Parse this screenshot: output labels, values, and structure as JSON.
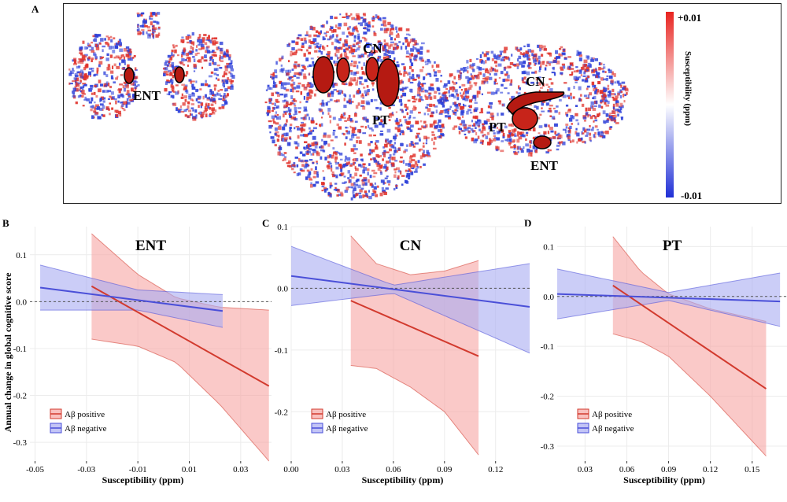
{
  "figure": {
    "panel_labels": {
      "A": "A",
      "B": "B",
      "C": "C",
      "D": "D"
    },
    "panelA": {
      "description": "Susceptibility brain maps (coronal, axial, sagittal)",
      "region_labels": {
        "coronal_ent": "ENT",
        "axial_cn": "CN",
        "axial_pt": "PT",
        "sagittal_cn": "CN",
        "sagittal_pt": "PT",
        "sagittal_ent": "ENT"
      },
      "colorbar": {
        "label": "Susceptibility (ppm)",
        "max_label": "+0.01",
        "min_label": "-0.01",
        "colors": {
          "max": "#e8231f",
          "mid": "#ffffff",
          "min": "#1f2fd6"
        }
      }
    },
    "shared_ylabel": "Annual change in global cognitive score",
    "colors": {
      "positive_line": "#d23a2e",
      "positive_fill": "#f6a5a3",
      "negative_line": "#4a4fd8",
      "negative_fill": "#a9acf2",
      "zero_line": "#555555"
    }
  },
  "chart_data": [
    {
      "panel": "B",
      "type": "line",
      "title": "ENT",
      "xlabel": "Susceptibility (ppm)",
      "ylabel": "Annual change in global cognitive score",
      "xlim": [
        -0.052,
        0.042
      ],
      "ylim": [
        -0.34,
        0.16
      ],
      "xticks": [
        -0.05,
        -0.03,
        -0.01,
        0.01,
        0.03
      ],
      "xtick_labels": [
        "-0.05",
        "-0.03",
        "-0.01",
        "0.01",
        "0.03"
      ],
      "yticks": [
        0.1,
        0.0,
        -0.1,
        -0.2,
        -0.3
      ],
      "ytick_labels": [
        "0.1",
        "0.0",
        "-0.1",
        "-0.2",
        "-0.3"
      ],
      "grid": true,
      "legend_position": "bottom-left",
      "series": [
        {
          "name": "Aβ positive",
          "x": [
            -0.028,
            0.041
          ],
          "y": [
            0.033,
            -0.18
          ],
          "ci_upper": {
            "x": [
              -0.028,
              -0.01,
              0.005,
              0.022,
              0.041
            ],
            "y": [
              0.145,
              0.058,
              0.008,
              -0.012,
              -0.018
            ]
          },
          "ci_lower": {
            "x": [
              -0.028,
              -0.01,
              0.005,
              0.022,
              0.041
            ],
            "y": [
              -0.08,
              -0.095,
              -0.13,
              -0.22,
              -0.34
            ]
          }
        },
        {
          "name": "Aβ negative",
          "x": [
            -0.048,
            0.023
          ],
          "y": [
            0.03,
            -0.02
          ],
          "ci_upper": {
            "x": [
              -0.048,
              -0.01,
              0.023
            ],
            "y": [
              0.078,
              0.025,
              0.015
            ]
          },
          "ci_lower": {
            "x": [
              -0.048,
              -0.01,
              0.023
            ],
            "y": [
              -0.018,
              -0.018,
              -0.055
            ]
          }
        }
      ]
    },
    {
      "panel": "C",
      "type": "line",
      "title": "CN",
      "xlabel": "Susceptibility (ppm)",
      "xlim": [
        0.0,
        0.14
      ],
      "ylim": [
        -0.28,
        0.1
      ],
      "xticks": [
        0.0,
        0.03,
        0.06,
        0.09,
        0.12
      ],
      "xtick_labels": [
        "0.00",
        "0.03",
        "0.06",
        "0.09",
        "0.12"
      ],
      "yticks": [
        0.1,
        0.0,
        -0.1,
        -0.2
      ],
      "ytick_labels": [
        "0.1",
        "0.0",
        "-0.1",
        "-0.2"
      ],
      "grid": true,
      "legend_position": "bottom-left",
      "series": [
        {
          "name": "Aβ positive",
          "x": [
            0.035,
            0.11
          ],
          "y": [
            -0.02,
            -0.11
          ],
          "ci_upper": {
            "x": [
              0.035,
              0.05,
              0.07,
              0.09,
              0.11
            ],
            "y": [
              0.085,
              0.04,
              0.022,
              0.028,
              0.045
            ]
          },
          "ci_lower": {
            "x": [
              0.035,
              0.05,
              0.07,
              0.09,
              0.11
            ],
            "y": [
              -0.125,
              -0.13,
              -0.16,
              -0.2,
              -0.27
            ]
          }
        },
        {
          "name": "Aβ negative",
          "x": [
            0.0,
            0.14
          ],
          "y": [
            0.02,
            -0.03
          ],
          "ci_upper": {
            "x": [
              0.0,
              0.06,
              0.14
            ],
            "y": [
              0.068,
              0.005,
              0.04
            ]
          },
          "ci_lower": {
            "x": [
              0.0,
              0.06,
              0.14
            ],
            "y": [
              -0.028,
              -0.008,
              -0.105
            ]
          }
        }
      ]
    },
    {
      "panel": "D",
      "type": "line",
      "title": "PT",
      "xlabel": "Susceptibility (ppm)",
      "xlim": [
        0.01,
        0.175
      ],
      "ylim": [
        -0.33,
        0.14
      ],
      "xticks": [
        0.03,
        0.06,
        0.09,
        0.12,
        0.15
      ],
      "xtick_labels": [
        "0.03",
        "0.06",
        "0.09",
        "0.12",
        "0.15"
      ],
      "yticks": [
        0.1,
        0.0,
        -0.1,
        -0.2,
        -0.3
      ],
      "ytick_labels": [
        "0.1",
        "0.0",
        "-0.1",
        "-0.2",
        "-0.3"
      ],
      "grid": true,
      "legend_position": "bottom-left",
      "series": [
        {
          "name": "Aβ positive",
          "x": [
            0.05,
            0.16
          ],
          "y": [
            0.022,
            -0.185
          ],
          "ci_upper": {
            "x": [
              0.05,
              0.07,
              0.09,
              0.12,
              0.16
            ],
            "y": [
              0.12,
              0.05,
              0.005,
              -0.025,
              -0.05
            ]
          },
          "ci_lower": {
            "x": [
              0.05,
              0.07,
              0.09,
              0.12,
              0.16
            ],
            "y": [
              -0.075,
              -0.09,
              -0.12,
              -0.2,
              -0.32
            ]
          }
        },
        {
          "name": "Aβ negative",
          "x": [
            0.01,
            0.17
          ],
          "y": [
            0.005,
            -0.01
          ],
          "ci_upper": {
            "x": [
              0.01,
              0.09,
              0.17
            ],
            "y": [
              0.055,
              0.008,
              0.047
            ]
          },
          "ci_lower": {
            "x": [
              0.01,
              0.09,
              0.17
            ],
            "y": [
              -0.045,
              -0.008,
              -0.06
            ]
          }
        }
      ]
    }
  ]
}
